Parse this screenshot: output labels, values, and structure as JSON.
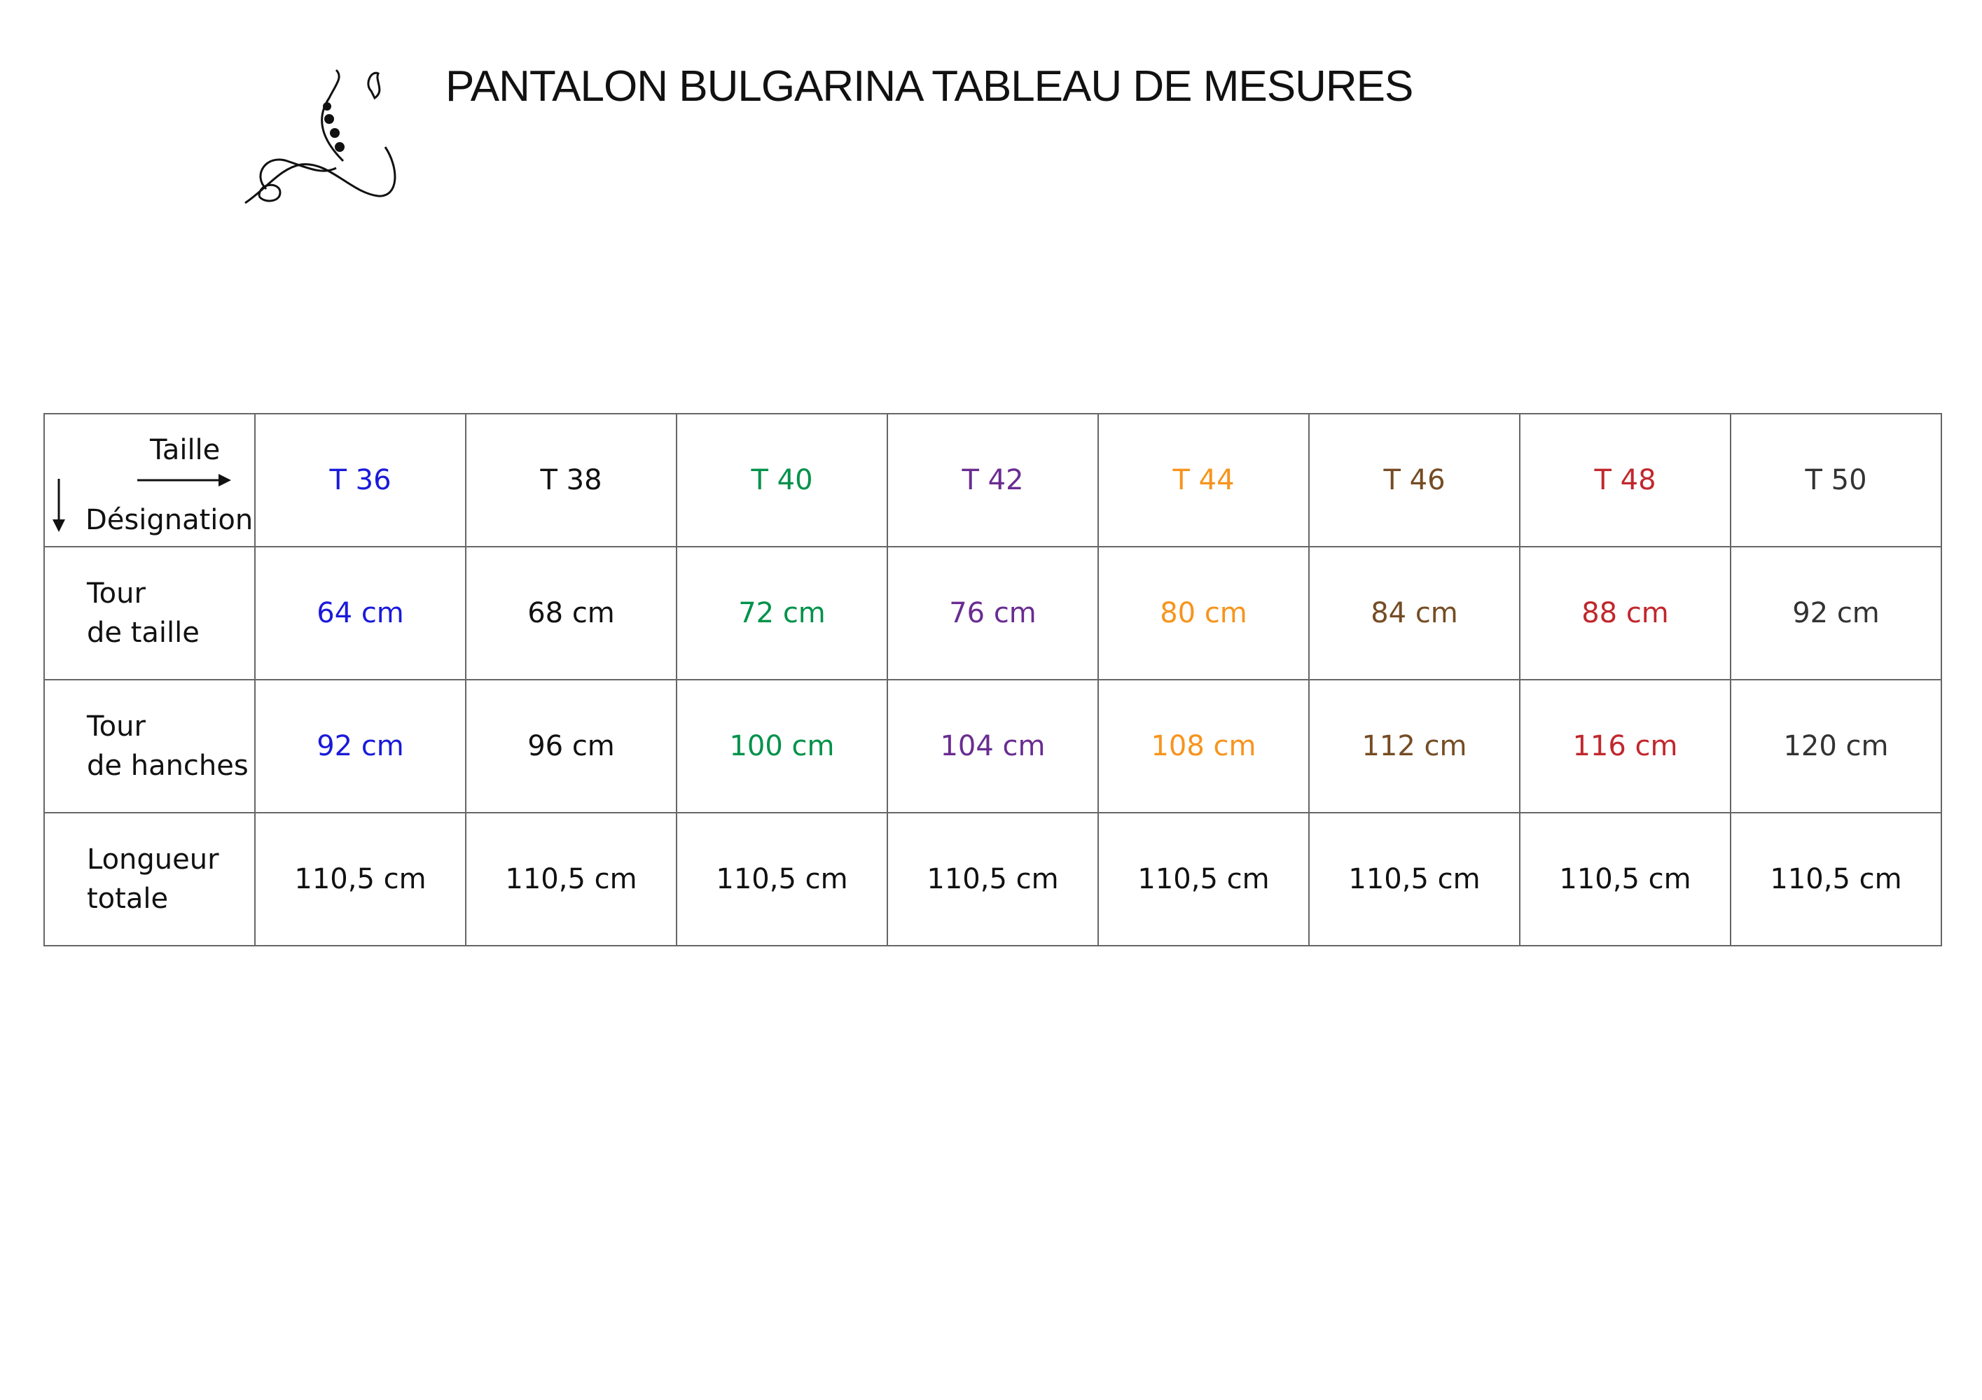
{
  "header": {
    "title": "PANTALON BULGARINA TABLEAU DE MESURES"
  },
  "table": {
    "corner": {
      "top": "Taille",
      "bottom": "Désignation"
    },
    "columns": [
      {
        "label": "T 36",
        "color": "#1a1adb"
      },
      {
        "label": "T 38",
        "color": "#111111"
      },
      {
        "label": "T 40",
        "color": "#00924a"
      },
      {
        "label": "T 42",
        "color": "#6a2c91"
      },
      {
        "label": "T 44",
        "color": "#f7941d"
      },
      {
        "label": "T 46",
        "color": "#754c24"
      },
      {
        "label": "T 48",
        "color": "#c1272d"
      },
      {
        "label": "T 50",
        "color": "#333333"
      }
    ],
    "rows": [
      {
        "label": "Tour\nde taille",
        "cells": [
          "64 cm",
          "68 cm",
          "72 cm",
          "76 cm",
          "80 cm",
          "84 cm",
          "88 cm",
          "92 cm"
        ]
      },
      {
        "label": "Tour\nde hanches",
        "cells": [
          "92 cm",
          "96 cm",
          "100 cm",
          "104 cm",
          "108 cm",
          "112 cm",
          "116 cm",
          "120 cm"
        ]
      },
      {
        "label": "Longueur\ntotale",
        "cells": [
          "110,5 cm",
          "110,5 cm",
          "110,5 cm",
          "110,5 cm",
          "110,5 cm",
          "110,5 cm",
          "110,5 cm",
          "110,5 cm"
        ],
        "black": true
      }
    ]
  }
}
